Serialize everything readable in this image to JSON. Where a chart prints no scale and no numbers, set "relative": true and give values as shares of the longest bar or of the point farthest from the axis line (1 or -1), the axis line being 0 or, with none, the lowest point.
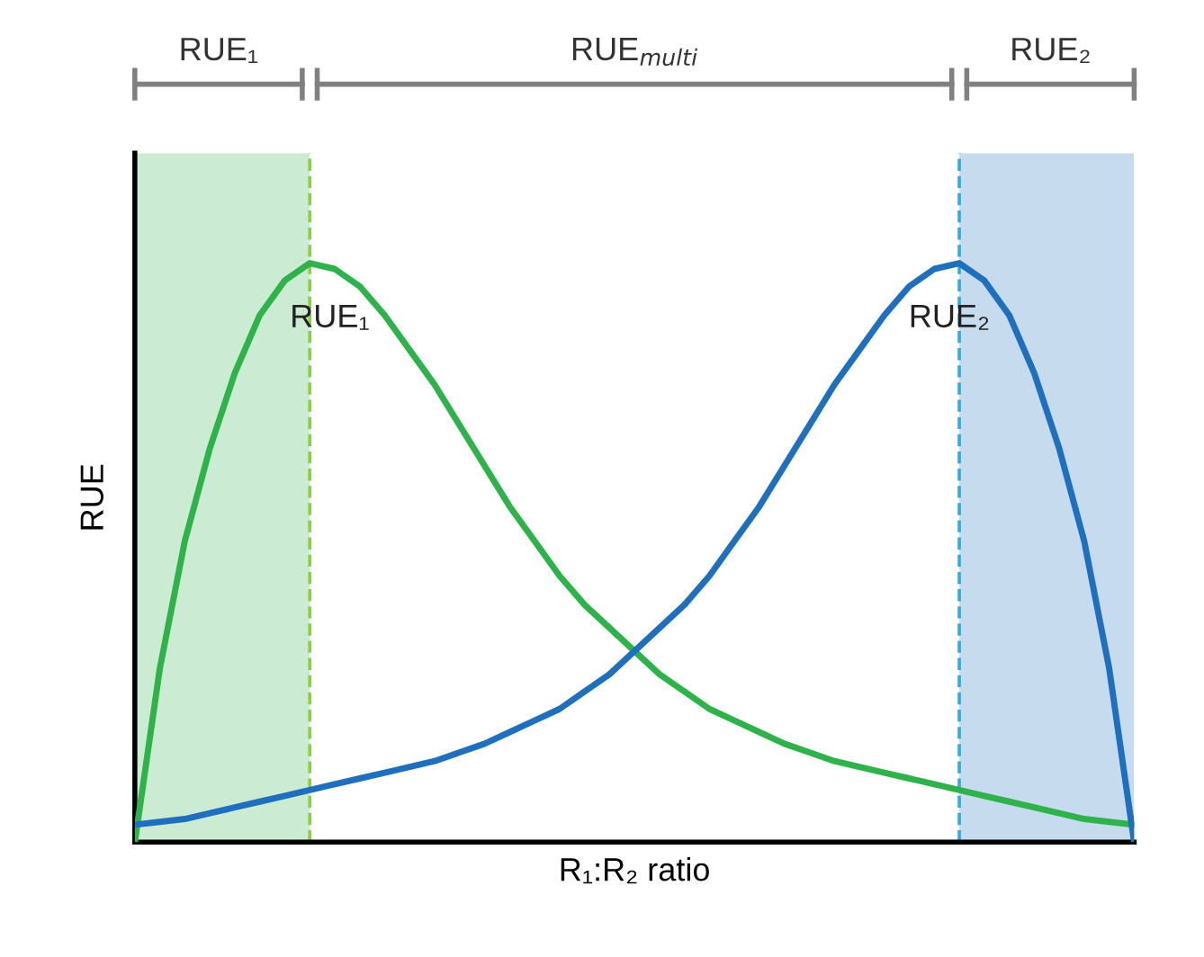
{
  "chart_data": {
    "type": "line",
    "relative": true,
    "xlabel": "R₁:R₂ ratio",
    "ylabel": "RUE",
    "tick_labels": false,
    "legend": false,
    "marker": "none",
    "line_style": "solid",
    "categories": [
      null,
      null,
      null,
      null,
      null,
      null,
      null,
      null,
      null,
      null,
      null,
      null,
      null,
      null,
      null,
      null,
      null,
      null,
      null,
      null,
      null,
      null,
      null,
      null,
      null,
      null,
      null,
      null,
      null,
      null,
      null,
      null,
      null,
      null,
      null,
      null,
      null,
      null,
      null,
      null,
      null
    ],
    "series": [
      {
        "color": "#2db34a",
        "values": [
          0,
          0.3,
          0.52,
          0.68,
          0.81,
          0.91,
          0.97,
          1.0,
          0.99,
          0.96,
          0.91,
          0.85,
          0.79,
          0.72,
          0.65,
          0.58,
          0.52,
          0.46,
          0.41,
          0.37,
          0.33,
          0.29,
          0.26,
          0.23,
          0.21,
          0.19,
          0.17,
          0.155,
          0.14,
          0.13,
          0.12,
          0.11,
          0.1,
          0.09,
          0.08,
          0.07,
          0.06,
          0.05,
          0.04,
          0.035,
          0.03
        ]
      },
      {
        "color": "#1f6fbf",
        "values": [
          0.03,
          0.035,
          0.04,
          0.05,
          0.06,
          0.07,
          0.08,
          0.09,
          0.1,
          0.11,
          0.12,
          0.13,
          0.14,
          0.155,
          0.17,
          0.19,
          0.21,
          0.23,
          0.26,
          0.29,
          0.33,
          0.37,
          0.41,
          0.46,
          0.52,
          0.58,
          0.65,
          0.72,
          0.79,
          0.85,
          0.91,
          0.96,
          0.99,
          1.0,
          0.97,
          0.91,
          0.81,
          0.68,
          0.52,
          0.3,
          0
        ]
      }
    ],
    "annotations": [
      "RUE₁",
      "RUE$_{multi}$",
      "RUE₂",
      "RUE₁",
      "RUE₂"
    ]
  }
}
